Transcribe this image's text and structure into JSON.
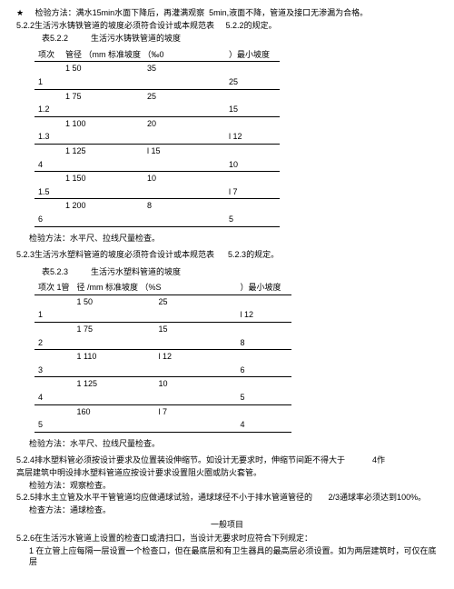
{
  "intro": {
    "star": "★",
    "line1a": "检验方法：满水15min水面下降后，再灌满观察",
    "line1b": "5min,液面不降，管道及接口无渗漏为合格。",
    "line2a": "5.2.2生活污水铸铁管道的坡度必须符合设计或本规范表",
    "line2b": "5.2.2的规定。"
  },
  "table1": {
    "title_a": "表5.2.2",
    "title_b": "生活污水铸铁管道的坡度",
    "hdr": [
      "项次",
      "管径  （mm 标准坡度 （‰0",
      "）最小坡度"
    ],
    "rows": [
      {
        "n": "1",
        "sub": "1",
        "d": "50",
        "s": "35",
        "min": "25"
      },
      {
        "n": "1.2",
        "sub": "1",
        "d": "75",
        "s": "25",
        "min": "15"
      },
      {
        "n": "1.3",
        "sub": "1",
        "d": "100",
        "s": "20",
        "min": "l 12"
      },
      {
        "n": "4",
        "sub": "1",
        "d": "125",
        "s": "l 15",
        "min": "10"
      },
      {
        "n": "1.5",
        "sub": "1",
        "d": "150",
        "s": "10",
        "min": "l 7"
      },
      {
        "n": "6",
        "sub": "1",
        "d": "200",
        "s": "8",
        "min": "5"
      }
    ],
    "foot": "检验方法：水平尺、拉线尺量检查。"
  },
  "mid1": {
    "a": "5.2.3生活污水塑料管道的坡度必须符合设计或本规范表",
    "b": "5.2.3的规定。"
  },
  "table2": {
    "title_a": "表5.2.3",
    "title_b": "生活污水塑料管道的坡度",
    "hdr": [
      "项次  1管",
      "径  /mm 标准坡度  （%S",
      "）最小坡度"
    ],
    "rows": [
      {
        "n": "1",
        "sub": "1",
        "d": "50",
        "s": "25",
        "min": "l 12"
      },
      {
        "n": "2",
        "sub": "1",
        "d": "75",
        "s": "15",
        "min": "8"
      },
      {
        "n": "3",
        "sub": "1",
        "d": "110",
        "s": "l 12",
        "min": "6"
      },
      {
        "n": "4",
        "sub": "1",
        "d": "125",
        "s": "10",
        "min": "5"
      },
      {
        "n": "5",
        "sub": "",
        "d": "160",
        "s": "l 7",
        "min": "4"
      }
    ],
    "foot": "检验方法：水平尺、拉线尺量检查。"
  },
  "p524": {
    "l1a": "5.2.4排水塑料管必须按设计要求及位置装设伸缩节。如设计无要求时，伸缩节间距不得大于",
    "l1b": "4作",
    "l2": "高层建筑中明设排水塑料管道应按设计要求设置阻火圈或防火套管。",
    "l3": "检验方法：观察检查。"
  },
  "p525": {
    "l1a": "5.2.5排水主立管及水平干管管道均应做通球试验，通球球径不小于排水管道管径的",
    "l1b": "2/3通球率必须达到100%。",
    "l2": "检查方法：通球检查。"
  },
  "general": {
    "title": "一般项目",
    "l1": "5.2.6在生活污水管道上设置的检查口或清扫口，当设计无要求时应符合下列规定：",
    "l2": "1 在立管上应每隔一层设置一个检查口，但在最底层和有卫生器具的最高层必须设置。如为两层建筑时，可仅在底层"
  }
}
